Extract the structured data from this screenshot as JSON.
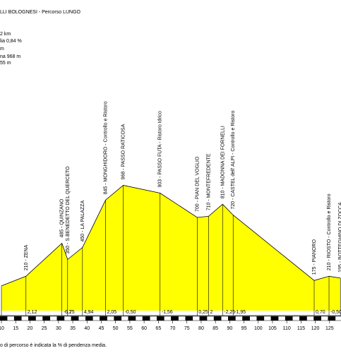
{
  "chart_data": {
    "type": "elevation-profile",
    "header": [
      "LLI BOLOGNESI - Percorso LUNGO",
      "2 km",
      "lia 0,84 %",
      "m",
      "na 968 m",
      " 55 m"
    ],
    "x": [
      10,
      18.6,
      31.2,
      33.2,
      38.4,
      46.5,
      52.7,
      65.6,
      78.6,
      82.6,
      87.5,
      91.2,
      119.6,
      124.8,
      128.8
    ],
    "values": [
      130,
      210,
      485,
      350,
      450,
      845,
      968,
      903,
      700,
      710,
      810,
      720,
      175,
      210,
      195
    ],
    "labels": [
      null,
      "210 - ZENA",
      "485 - QUINZANO",
      "350 - S.BENEDETTO DEL QUERCETO",
      "450 - LA PALAZZA",
      "845 - MONGHIDORO - Controllo e Ristoro",
      "968 - PASSO RATICOSA",
      "903 - PASSO FUTA - Ristoro Idrico",
      "700 - PIAN DEL VOGLIO",
      "710 - MONTEFREDENTE",
      "810 - MADONNA DEI FORNELLI",
      "720 - CASTEL dell' ALPI - Controllo e Ristoro",
      "175 - PIANORO",
      "210 - RIOSTO - Controllo e Ristoro",
      "195 - BOTTEGHINO DI ZOCCA"
    ],
    "slopes": [
      {
        "value": 2.12,
        "label": "2,12"
      },
      {
        "value": -6.75,
        "label": "-6,75"
      },
      {
        "value": 2,
        "label": "2"
      },
      {
        "value": 4.94,
        "label": "4,94"
      },
      {
        "value": 2.05,
        "label": "2,05"
      },
      {
        "value": -0.5,
        "label": "-0,50"
      },
      {
        "value": -1.56,
        "label": "-1,56"
      },
      {
        "value": 0.25,
        "label": "0,25"
      },
      {
        "value": 2,
        "label": "2"
      },
      {
        "value": -2.25,
        "label": "-2,25"
      },
      {
        "value": -1.95,
        "label": "-1,95"
      },
      {
        "value": 0.7,
        "label": "0,70"
      },
      {
        "value": -0.5,
        "label": "-0,50"
      }
    ],
    "xlim": [
      9.5,
      129
    ],
    "ylim": [
      0,
      1000
    ],
    "xticks": [
      10,
      15,
      20,
      25,
      30,
      35,
      40,
      45,
      50,
      55,
      60,
      65,
      70,
      75,
      80,
      85,
      90,
      95,
      100,
      105,
      110,
      115,
      120,
      125
    ],
    "color": "#ffff00",
    "footer": "o di percorso è indicata la % di pendenza media."
  }
}
